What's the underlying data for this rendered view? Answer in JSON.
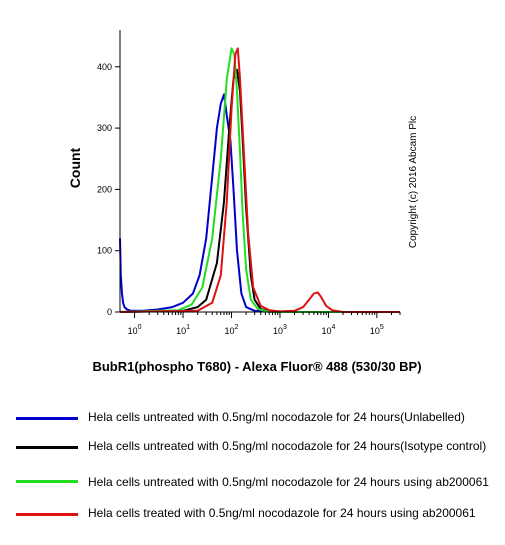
{
  "chart_data": {
    "type": "line",
    "xlabel": "BubR1(phospho T680) - Alexa Fluor® 488 (530/30 BP)",
    "ylabel": "Count",
    "x_scale": "log",
    "xlim": [
      0.5,
      300000
    ],
    "ylim": [
      0,
      460
    ],
    "y_ticks": [
      0,
      100,
      200,
      300,
      400
    ],
    "x_tick_labels": [
      {
        "x": 1,
        "label": "10",
        "exp": "0"
      },
      {
        "x": 10,
        "label": "10",
        "exp": "1"
      },
      {
        "x": 100,
        "label": "10",
        "exp": "2"
      },
      {
        "x": 1000,
        "label": "10",
        "exp": "3"
      },
      {
        "x": 10000,
        "label": "10",
        "exp": "4"
      },
      {
        "x": 100000,
        "label": "10",
        "exp": "5"
      }
    ],
    "annotation": "Copyright (c) 2016 Abcam Plc",
    "legend_placement": "below",
    "series": [
      {
        "name": "Hela cells untreated with 0.5ng/ml nocodazole for 24 hours(Unlabelled)",
        "color": "#0000cc",
        "x": [
          0.5,
          0.52,
          0.55,
          0.58,
          0.62,
          0.7,
          0.85,
          1.5,
          3,
          6,
          10,
          16,
          22,
          30,
          40,
          50,
          60,
          70,
          80,
          95,
          110,
          130,
          160,
          200,
          300,
          1000,
          300000
        ],
        "y": [
          120,
          60,
          30,
          15,
          8,
          4,
          2,
          2,
          4,
          8,
          15,
          30,
          60,
          120,
          220,
          300,
          340,
          355,
          320,
          280,
          200,
          100,
          30,
          8,
          2,
          0,
          0
        ]
      },
      {
        "name": "Hela cells untreated with 0.5ng/ml nocodazole for 24 hours(Isotype control)",
        "color": "#000000",
        "x": [
          0.5,
          10,
          20,
          30,
          50,
          70,
          90,
          110,
          130,
          150,
          170,
          200,
          250,
          300,
          400,
          600,
          1000,
          300000
        ],
        "y": [
          0,
          2,
          8,
          20,
          80,
          180,
          300,
          380,
          395,
          360,
          280,
          170,
          60,
          20,
          5,
          1,
          0,
          0
        ]
      },
      {
        "name": "Hela cells untreated with 0.5ng/ml nocodazole for 24 hours using ab200061",
        "color": "#22dd22",
        "x": [
          0.5,
          8,
          15,
          25,
          40,
          60,
          80,
          100,
          115,
          130,
          150,
          170,
          200,
          250,
          350,
          600,
          300000
        ],
        "y": [
          0,
          3,
          12,
          40,
          120,
          250,
          380,
          430,
          420,
          360,
          260,
          160,
          70,
          20,
          5,
          0,
          0
        ]
      },
      {
        "name": "Hela cells treated with 0.5ng/ml nocodazole for 24 hours using ab200061",
        "color": "#dd1111",
        "x": [
          0.5,
          20,
          40,
          60,
          80,
          100,
          120,
          135,
          150,
          180,
          220,
          280,
          400,
          600,
          1000,
          2000,
          3000,
          4000,
          5000,
          6000,
          7000,
          9000,
          12000,
          20000,
          300000
        ],
        "y": [
          0,
          2,
          15,
          60,
          180,
          330,
          420,
          430,
          380,
          260,
          130,
          40,
          10,
          3,
          1,
          2,
          8,
          20,
          30,
          32,
          25,
          10,
          3,
          0,
          0
        ]
      }
    ]
  }
}
